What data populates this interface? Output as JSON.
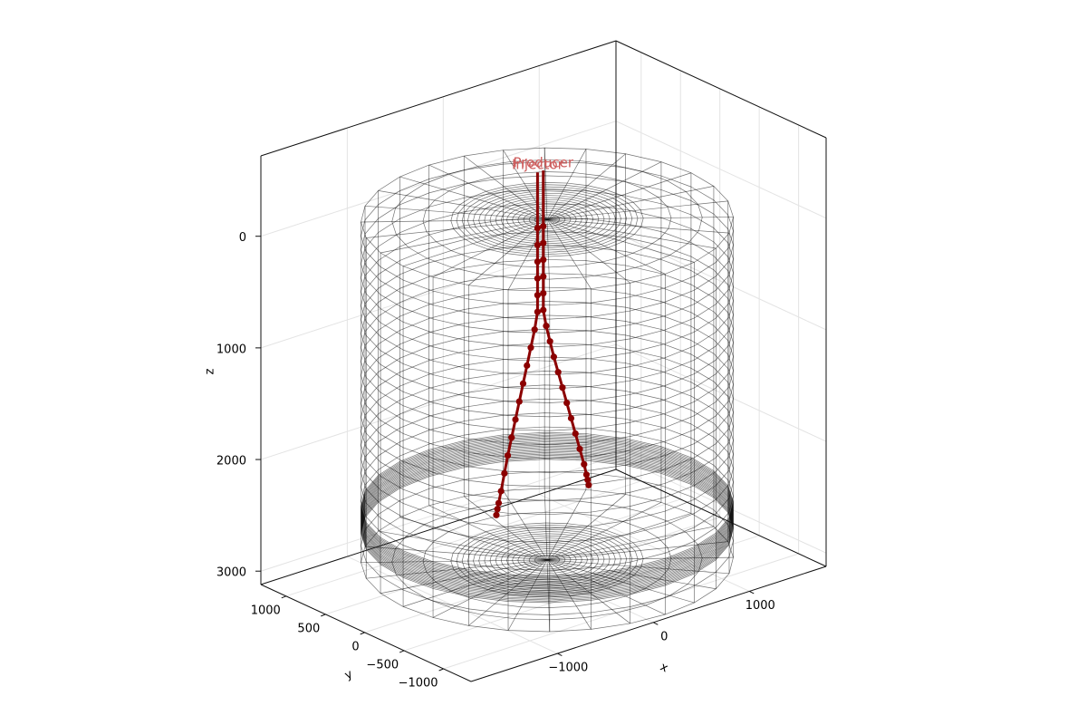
{
  "chart_data": {
    "type": "line3d",
    "xlabel": "x",
    "ylabel": "y",
    "zlabel": "z",
    "xlim": [
      -1900,
      1800
    ],
    "ylim": [
      -1350,
      1320
    ],
    "zlim": [
      -720,
      3120
    ],
    "zreversed": true,
    "xticks": [
      {
        "value": -1000,
        "label": "−1000"
      },
      0,
      1000
    ],
    "yticks": [
      {
        "value": -1000,
        "label": "−1000"
      },
      {
        "value": -500,
        "label": "−500"
      },
      0,
      500,
      1000
    ],
    "zticks": [
      0,
      1000,
      2000,
      3000
    ],
    "grid": true,
    "series": [
      {
        "name": "Injector",
        "color": "#8b0000",
        "label_color": "#cd5c5c",
        "x": [
          -100,
          -100,
          -100,
          -100,
          -100,
          -100,
          -100,
          -130,
          -170,
          -210,
          -250,
          -290,
          -330,
          -370,
          -410,
          -445,
          -480,
          -505,
          -518,
          -529
        ],
        "y": [
          0,
          0,
          0,
          0,
          0,
          0,
          0,
          0,
          0,
          0,
          0,
          0,
          0,
          0,
          0,
          0,
          0,
          0,
          0,
          0
        ],
        "z": [
          -500,
          0,
          150,
          300,
          450,
          600,
          750,
          900,
          1050,
          1200,
          1350,
          1500,
          1650,
          1800,
          1950,
          2100,
          2250,
          2350,
          2400,
          2450
        ]
      },
      {
        "name": "Producer",
        "color": "#8b0000",
        "label_color": "#cd5c5c",
        "x": [
          -40,
          -40,
          -40,
          -40,
          -40,
          -40,
          -40,
          -10,
          30,
          70,
          115,
          160,
          205,
          250,
          295,
          340,
          385,
          410,
          422,
          433
        ],
        "y": [
          0,
          0,
          0,
          0,
          0,
          0,
          0,
          0,
          0,
          0,
          0,
          0,
          0,
          0,
          0,
          0,
          0,
          0,
          0,
          0
        ],
        "z": [
          -500,
          0,
          150,
          300,
          450,
          600,
          750,
          900,
          1050,
          1200,
          1350,
          1500,
          1650,
          1800,
          1950,
          2100,
          2250,
          2350,
          2400,
          2450
        ]
      }
    ]
  }
}
